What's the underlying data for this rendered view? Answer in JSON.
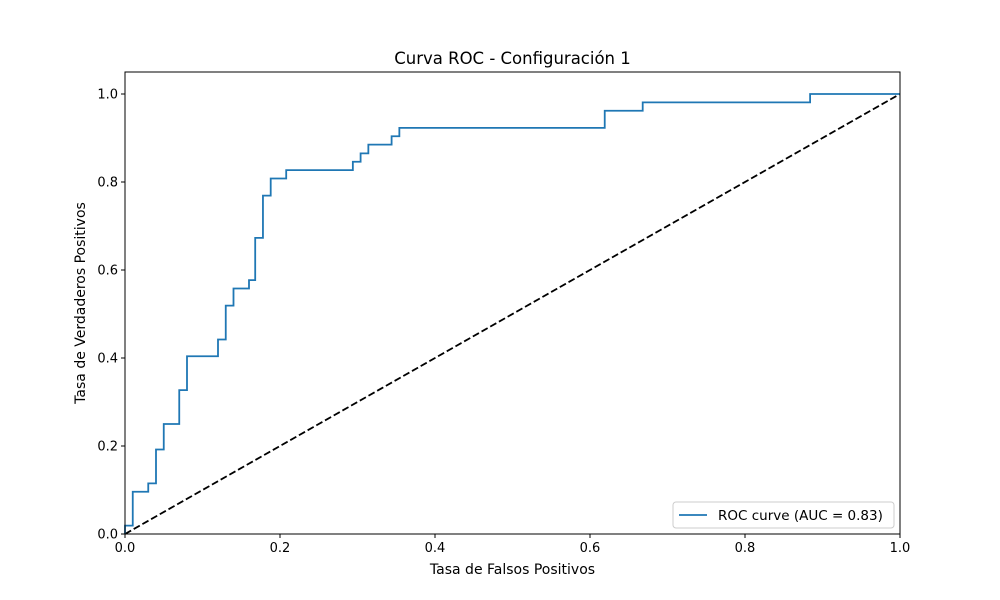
{
  "chart_data": {
    "type": "line",
    "title": "Curva ROC - Configuración 1",
    "xlabel": "Tasa de Falsos Positivos",
    "ylabel": "Tasa de Verdaderos Positivos",
    "xlim": [
      0.0,
      1.0
    ],
    "ylim": [
      0.0,
      1.05
    ],
    "xticks": [
      0.0,
      0.2,
      0.4,
      0.6,
      0.8,
      1.0
    ],
    "xtick_labels": [
      "0.0",
      "0.2",
      "0.4",
      "0.6",
      "0.8",
      "1.0"
    ],
    "yticks": [
      0.0,
      0.2,
      0.4,
      0.6,
      0.8,
      1.0
    ],
    "ytick_labels": [
      "0.0",
      "0.2",
      "0.4",
      "0.6",
      "0.8",
      "1.0"
    ],
    "grid": false,
    "legend_position": "lower-right",
    "series": [
      {
        "name": "ROC curve (AUC = 0.83)",
        "color": "#1f77b4",
        "linestyle": "solid",
        "step": true,
        "x": [
          0.0,
          0.0,
          0.01,
          0.01,
          0.03,
          0.03,
          0.04,
          0.04,
          0.05,
          0.05,
          0.07,
          0.07,
          0.08,
          0.08,
          0.12,
          0.12,
          0.13,
          0.13,
          0.14,
          0.14,
          0.16,
          0.16,
          0.168,
          0.168,
          0.178,
          0.178,
          0.188,
          0.188,
          0.208,
          0.208,
          0.294,
          0.294,
          0.304,
          0.304,
          0.314,
          0.314,
          0.344,
          0.344,
          0.354,
          0.354,
          0.619,
          0.619,
          0.668,
          0.668,
          0.884,
          0.884,
          1.0
        ],
        "y": [
          0.0,
          0.019,
          0.019,
          0.096,
          0.096,
          0.115,
          0.115,
          0.192,
          0.192,
          0.25,
          0.25,
          0.327,
          0.327,
          0.404,
          0.404,
          0.442,
          0.442,
          0.519,
          0.519,
          0.558,
          0.558,
          0.577,
          0.577,
          0.673,
          0.673,
          0.769,
          0.769,
          0.808,
          0.808,
          0.827,
          0.827,
          0.846,
          0.846,
          0.865,
          0.865,
          0.885,
          0.885,
          0.904,
          0.904,
          0.923,
          0.923,
          0.962,
          0.962,
          0.981,
          0.981,
          1.0,
          1.0
        ]
      },
      {
        "color": "#000000",
        "linestyle": "dashed",
        "x": [
          0.0,
          1.0
        ],
        "y": [
          0.0,
          1.0
        ]
      }
    ]
  }
}
